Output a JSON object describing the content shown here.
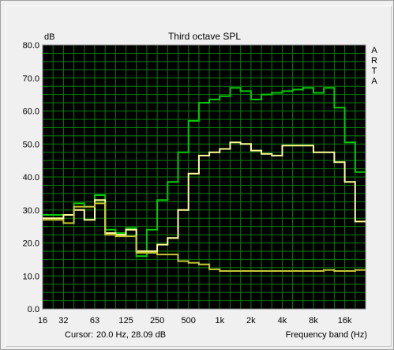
{
  "chart_data": {
    "type": "line",
    "title": "Third octave SPL",
    "ylabel": "dB",
    "xlabel": "Frequency band (Hz)",
    "side_label": "ARTA",
    "ylim": [
      0,
      80
    ],
    "y_ticks": [
      "0.0",
      "10.0",
      "20.0",
      "30.0",
      "40.0",
      "50.0",
      "60.0",
      "70.0",
      "80.0"
    ],
    "x_tick_labels": [
      "16",
      "32",
      "63",
      "125",
      "250",
      "500",
      "1k",
      "2k",
      "4k",
      "8k",
      "16k"
    ],
    "x_scale": "log",
    "grid": true,
    "background": "#000000",
    "grid_color": "#008000",
    "cursor_label": "Cursor:",
    "cursor_value": "20.0 Hz, 28.09 dB",
    "bands": [
      "16",
      "20",
      "25",
      "31.5",
      "40",
      "50",
      "63",
      "80",
      "100",
      "125",
      "160",
      "200",
      "250",
      "315",
      "400",
      "500",
      "630",
      "800",
      "1k",
      "1.25k",
      "1.6k",
      "2k",
      "2.5k",
      "3.15k",
      "4k",
      "5k",
      "6.3k",
      "8k",
      "10k",
      "12.5k",
      "16k"
    ],
    "series": [
      {
        "color": "#00cc00",
        "values": [
          28.5,
          28.5,
          28.5,
          32,
          31,
          34.5,
          24,
          23,
          24.5,
          16,
          24,
          33,
          38.5,
          47.5,
          57,
          62.5,
          63.5,
          64.5,
          67,
          66,
          63.5,
          65,
          65.5,
          66,
          66.5,
          67,
          65.5,
          67,
          61,
          50.5,
          41.5
        ]
      },
      {
        "color": "#ffff99",
        "values": [
          27.5,
          27.5,
          28.5,
          30,
          27,
          33,
          23,
          22.5,
          24,
          17.5,
          17.5,
          19.5,
          21.5,
          30,
          41,
          46.5,
          47.5,
          48.5,
          50.5,
          50,
          48,
          47,
          46.5,
          49.5,
          49.5,
          49.5,
          47.5,
          47.5,
          44.5,
          38.5,
          26.5
        ]
      },
      {
        "color": "#c8c832",
        "values": [
          27,
          27,
          26,
          31,
          31,
          32,
          22.5,
          22,
          22,
          17,
          17,
          16.5,
          16.5,
          14.5,
          14,
          13.5,
          12,
          11.5,
          11.5,
          11.5,
          11.5,
          11.5,
          11.5,
          11.5,
          11.5,
          11.5,
          11.5,
          11.8,
          11.5,
          11.5,
          11.8
        ]
      }
    ]
  }
}
